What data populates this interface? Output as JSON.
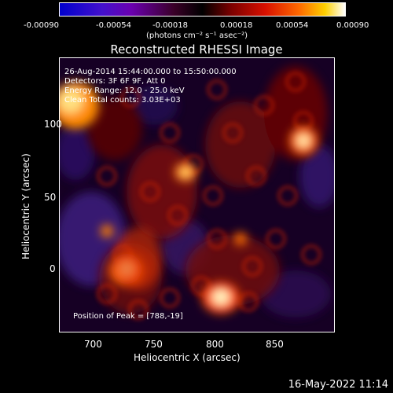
{
  "colorbar": {
    "ticks": [
      "-0.00090",
      "-0.00054",
      "-0.00018",
      "0.00018",
      "0.00054",
      "0.00090"
    ],
    "units": "(photons cm⁻² s⁻¹ asec⁻²)"
  },
  "title": "Reconstructed RHESSI Image",
  "annotations": {
    "line1": "26-Aug-2014 15:44:00.000 to 15:50:00.000",
    "line2": "Detectors: 3F 6F 9F, Att 0",
    "line3": "Energy Range: 12.0 - 25.0 keV",
    "line4": "Clean    Total counts: 3.03E+03",
    "peak": "Position of Peak = [788,-19]"
  },
  "axes": {
    "xlabel": "Heliocentric X (arcsec)",
    "ylabel": "Heliocentric Y (arcsec)",
    "xticks": [
      "700",
      "750",
      "800",
      "850"
    ],
    "yticks": [
      "100",
      "50",
      "0"
    ]
  },
  "timestamp": "16-May-2022 11:14"
}
